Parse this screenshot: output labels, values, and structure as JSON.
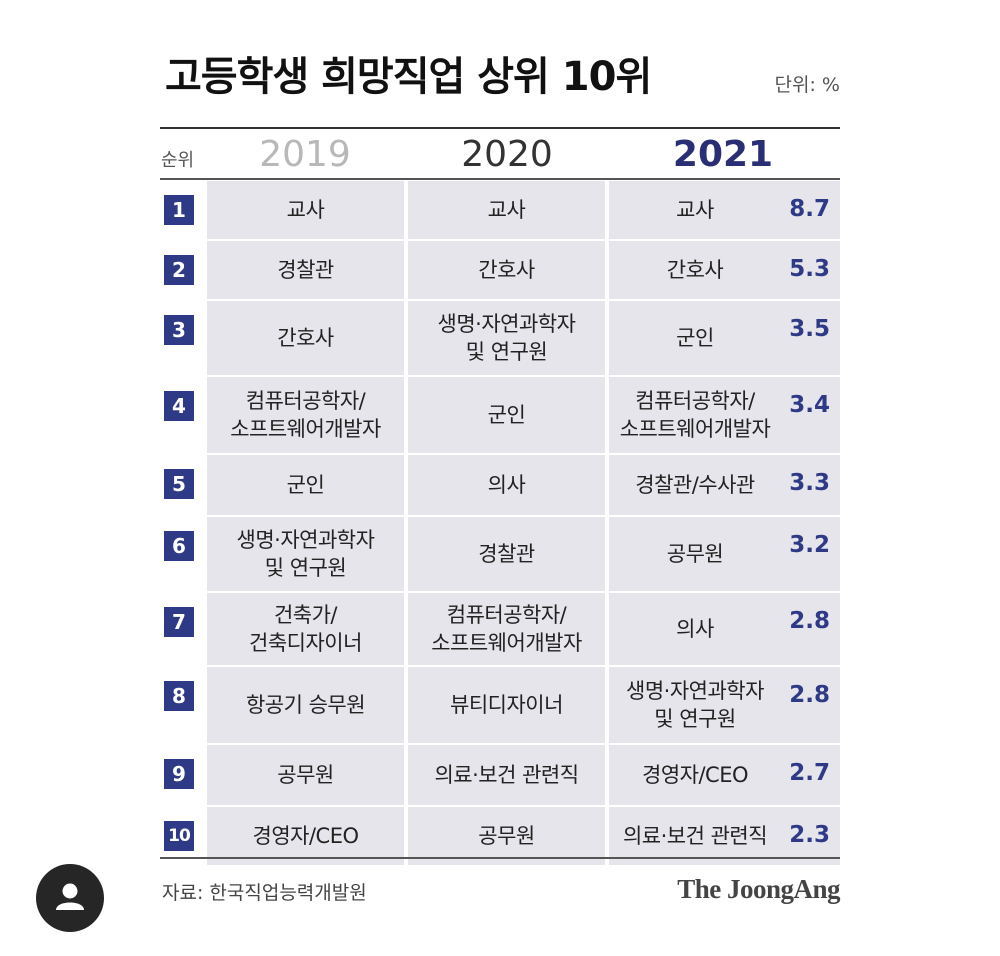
{
  "title": "고등학생 희망직업 상위 10위",
  "unit": "단위: %",
  "colors": {
    "rank_bg": "#2e3a86",
    "cell_bg": "#e5e5eb",
    "highlight": "#2a2f75",
    "faded": "#b8b8b8"
  },
  "headers": {
    "rank": "순위",
    "y2019": "2019",
    "y2020": "2020",
    "y2021": "2021"
  },
  "chart_data": {
    "type": "table",
    "title": "고등학생 희망직업 상위 10위",
    "unit": "단위: %",
    "columns": [
      "순위",
      "2019",
      "2020",
      "2021"
    ],
    "rows": [
      {
        "rank": "1",
        "y2019": "교사",
        "y2020": "교사",
        "y2021": "교사",
        "pct": "8.7"
      },
      {
        "rank": "2",
        "y2019": "경찰관",
        "y2020": "간호사",
        "y2021": "간호사",
        "pct": "5.3"
      },
      {
        "rank": "3",
        "y2019": "간호사",
        "y2020": "생명·자연과학자\n및 연구원",
        "y2021": "군인",
        "pct": "3.5"
      },
      {
        "rank": "4",
        "y2019": "컴퓨터공학자/\n소프트웨어개발자",
        "y2020": "군인",
        "y2021": "컴퓨터공학자/\n소프트웨어개발자",
        "pct": "3.4"
      },
      {
        "rank": "5",
        "y2019": "군인",
        "y2020": "의사",
        "y2021": "경찰관/수사관",
        "pct": "3.3"
      },
      {
        "rank": "6",
        "y2019": "생명·자연과학자\n및 연구원",
        "y2020": "경찰관",
        "y2021": "공무원",
        "pct": "3.2"
      },
      {
        "rank": "7",
        "y2019": "건축가/\n건축디자이너",
        "y2020": "컴퓨터공학자/\n소프트웨어개발자",
        "y2021": "의사",
        "pct": "2.8"
      },
      {
        "rank": "8",
        "y2019": "항공기 승무원",
        "y2020": "뷰티디자이너",
        "y2021": "생명·자연과학자\n및 연구원",
        "pct": "2.8"
      },
      {
        "rank": "9",
        "y2019": "공무원",
        "y2020": "의료·보건 관련직",
        "y2021": "경영자/CEO",
        "pct": "2.7"
      },
      {
        "rank": "10",
        "y2019": "경영자/CEO",
        "y2020": "공무원",
        "y2021": "의료·보건 관련직",
        "pct": "2.3"
      }
    ]
  },
  "footer": {
    "source": "자료: 한국직업능력개발원",
    "logo": "The JoongAng"
  },
  "avatar_icon": "user-icon"
}
